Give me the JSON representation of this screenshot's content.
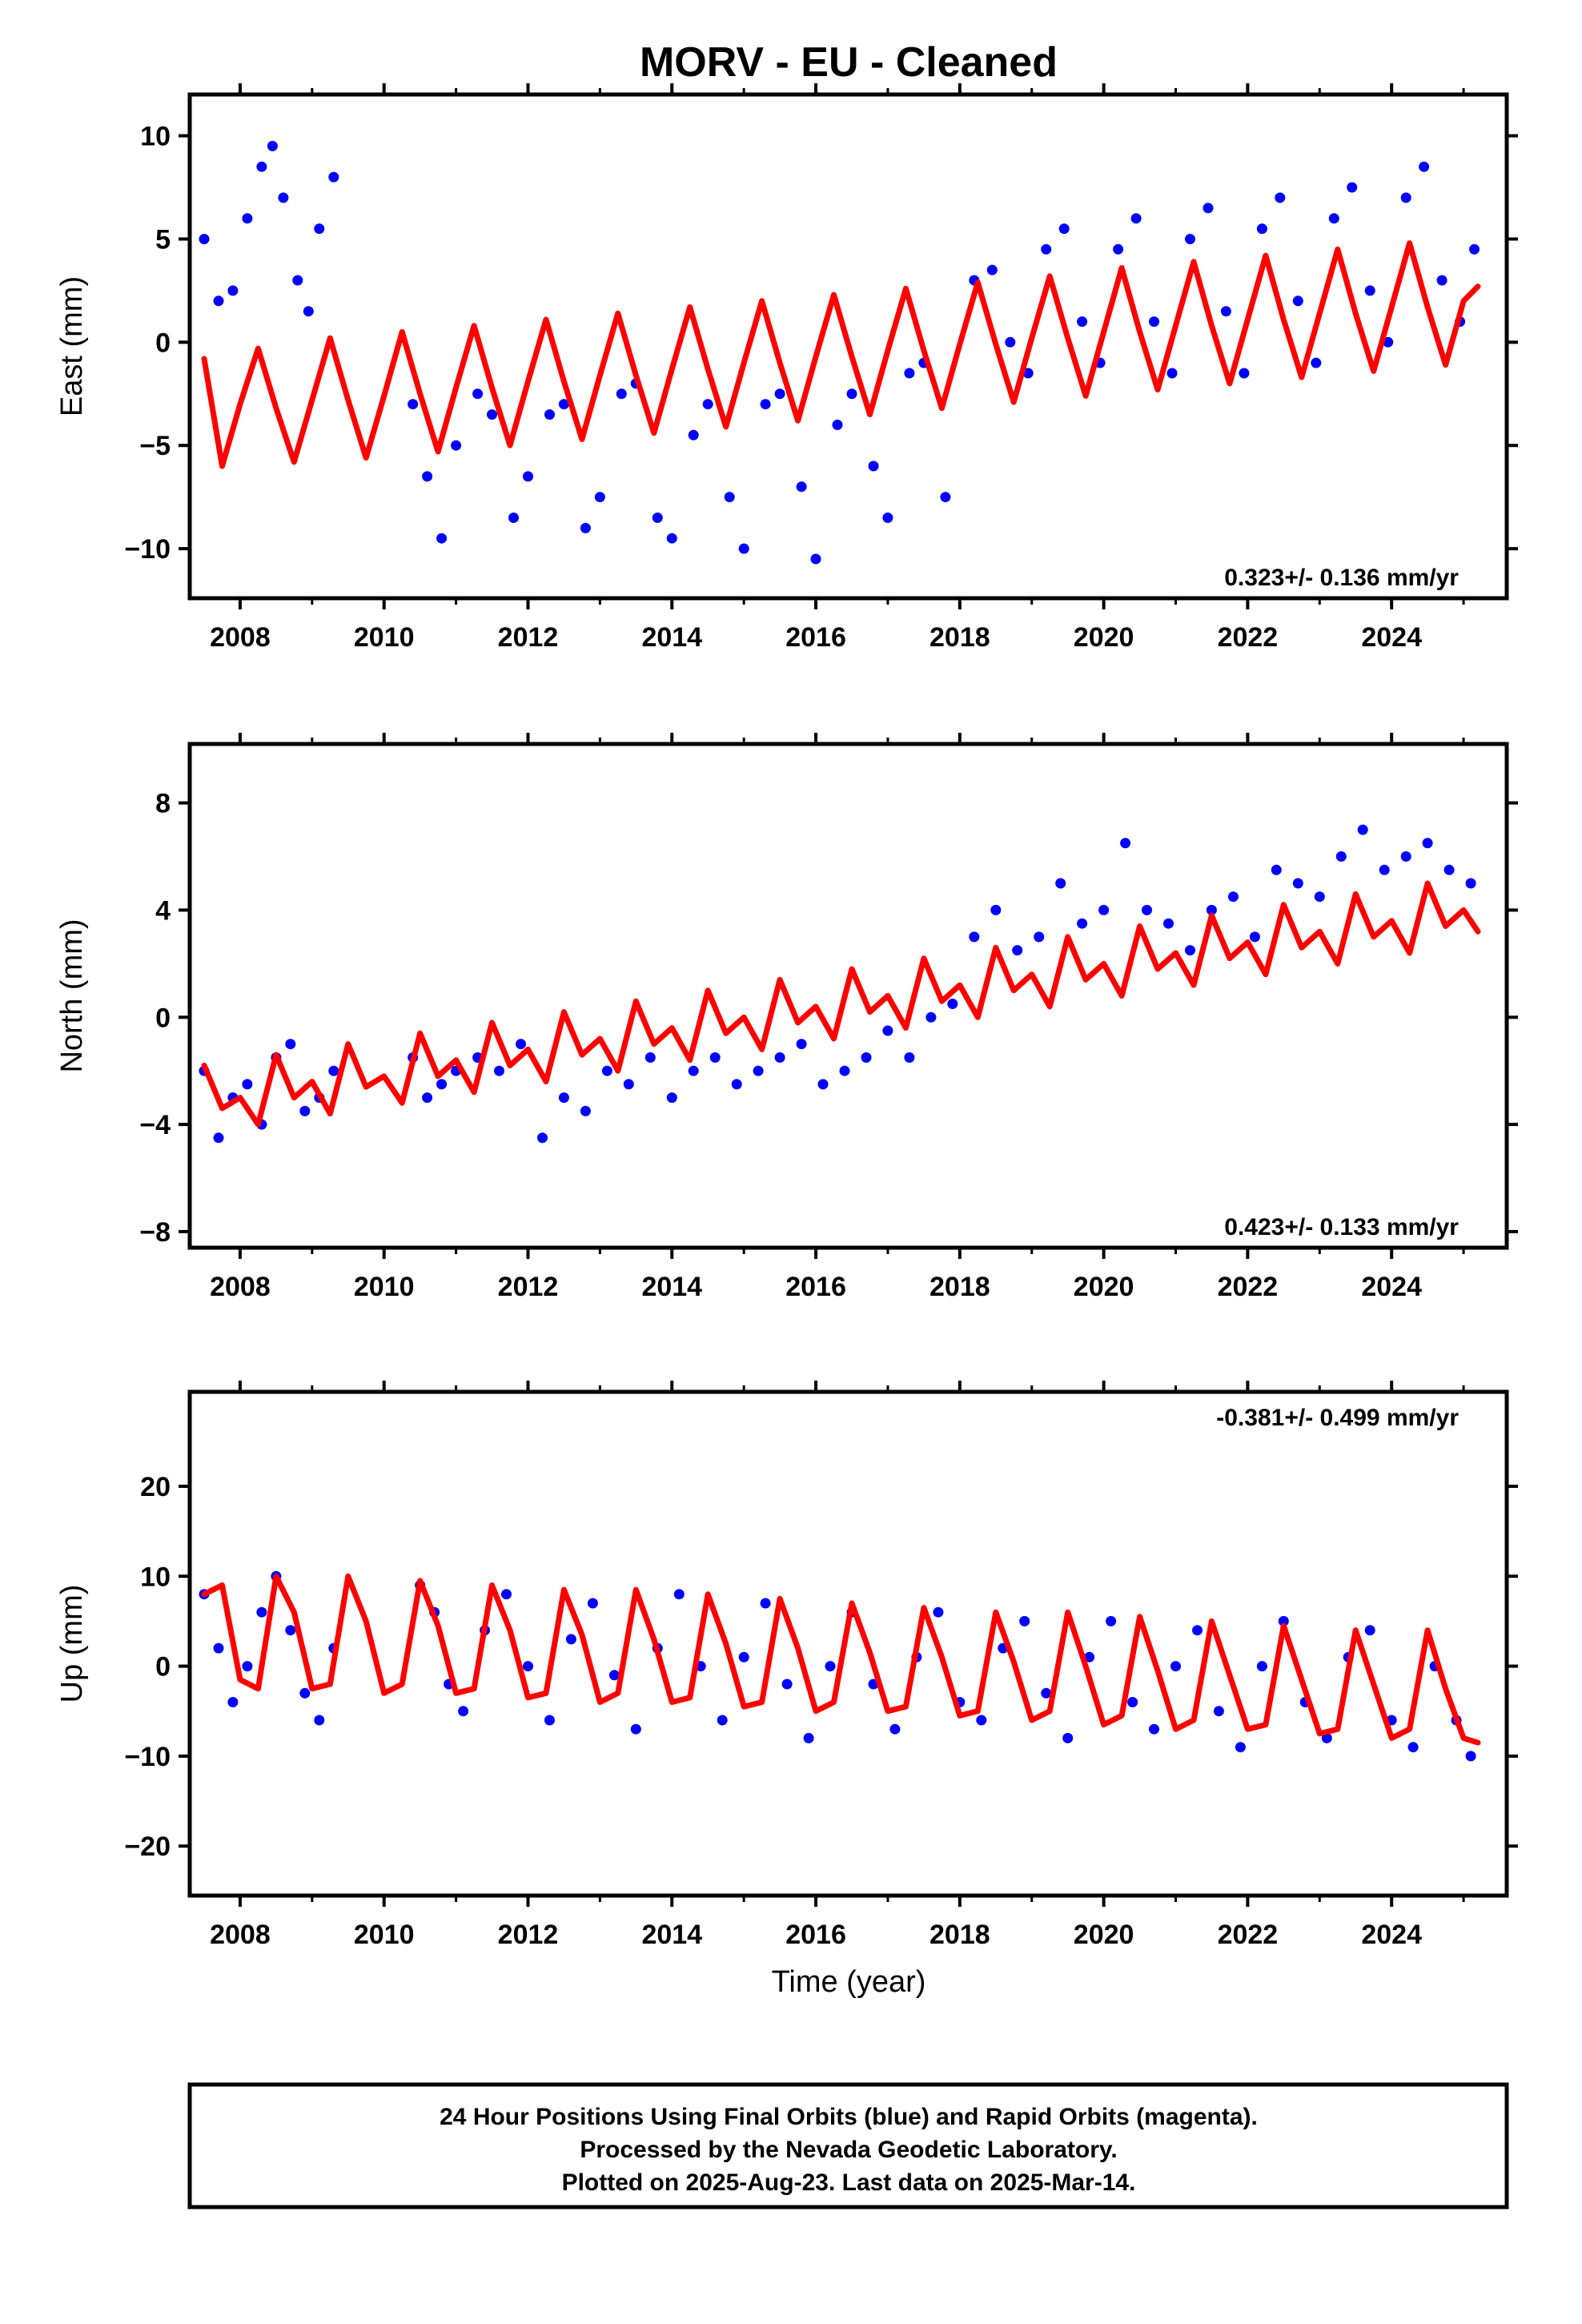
{
  "figure": {
    "title": "MORV  - EU - Cleaned",
    "xlabel": "Time (year)",
    "caption": [
      "24 Hour Positions Using Final Orbits (blue) and Rapid Orbits (magenta).",
      "Processed by the Nevada Geodetic Laboratory.",
      "Plotted on 2025-Aug-23. Last data on 2025-Mar-14."
    ]
  },
  "colors": {
    "data": "#0000ff",
    "model": "#ff0000",
    "frame": "#000000"
  },
  "chart_data": [
    {
      "type": "scatter",
      "component": "east",
      "ylabel": "East (mm)",
      "rate_label": "0.323+/- 0.136 mm/yr",
      "xlim": [
        2007.3,
        2025.6
      ],
      "ylim": [
        -12.4,
        12.0
      ],
      "xticks": [
        2008,
        2010,
        2012,
        2014,
        2016,
        2018,
        2020,
        2022,
        2024
      ],
      "xtick_labels": [
        "2008",
        "2010",
        "2012",
        "2014",
        "2016",
        "2018",
        "2020",
        "2022",
        "2024"
      ],
      "yticks": [
        -10,
        -5,
        0,
        5,
        10
      ],
      "ytick_labels": [
        "−10",
        "−5",
        "0",
        "5",
        "10"
      ],
      "series": [
        {
          "kind": "points",
          "color": "#0000ff",
          "x": [
            2007.5,
            2007.7,
            2007.9,
            2008.1,
            2008.3,
            2008.45,
            2008.6,
            2008.8,
            2008.95,
            2009.1,
            2009.3,
            2010.4,
            2010.6,
            2010.8,
            2011.0,
            2011.3,
            2011.5,
            2011.8,
            2012.0,
            2012.3,
            2012.5,
            2012.8,
            2013.0,
            2013.3,
            2013.5,
            2013.8,
            2014.0,
            2014.3,
            2014.5,
            2014.8,
            2015.0,
            2015.3,
            2015.5,
            2015.8,
            2016.0,
            2016.3,
            2016.5,
            2016.8,
            2017.0,
            2017.3,
            2017.5,
            2017.8,
            2018.2,
            2018.45,
            2018.7,
            2018.95,
            2019.2,
            2019.45,
            2019.7,
            2019.95,
            2020.2,
            2020.45,
            2020.7,
            2020.95,
            2021.2,
            2021.45,
            2021.7,
            2021.95,
            2022.2,
            2022.45,
            2022.7,
            2022.95,
            2023.2,
            2023.45,
            2023.7,
            2023.95,
            2024.2,
            2024.45,
            2024.7,
            2024.95,
            2025.15
          ],
          "y": [
            5.0,
            2.0,
            2.5,
            6.0,
            8.5,
            9.5,
            7.0,
            3.0,
            1.5,
            5.5,
            8.0,
            -3.0,
            -6.5,
            -9.5,
            -5.0,
            -2.5,
            -3.5,
            -8.5,
            -6.5,
            -3.5,
            -3.0,
            -9.0,
            -7.5,
            -2.5,
            -2.0,
            -8.5,
            -9.5,
            -4.5,
            -3.0,
            -7.5,
            -10.0,
            -3.0,
            -2.5,
            -7.0,
            -10.5,
            -4.0,
            -2.5,
            -6.0,
            -8.5,
            -1.5,
            -1.0,
            -7.5,
            3.0,
            3.5,
            0.0,
            -1.5,
            4.5,
            5.5,
            1.0,
            -1.0,
            4.5,
            6.0,
            1.0,
            -1.5,
            5.0,
            6.5,
            1.5,
            -1.5,
            5.5,
            7.0,
            2.0,
            -1.0,
            6.0,
            7.5,
            2.5,
            0.0,
            7.0,
            8.5,
            3.0,
            1.0,
            4.5
          ]
        },
        {
          "kind": "model",
          "color": "#ff0000",
          "x": [
            2007.5,
            2007.75,
            2008.0,
            2008.25,
            2008.5,
            2008.75,
            2009.0,
            2009.25,
            2009.5,
            2009.75,
            2010.0,
            2010.25,
            2010.5,
            2010.75,
            2011.0,
            2011.25,
            2011.5,
            2011.75,
            2012.0,
            2012.25,
            2012.5,
            2012.75,
            2013.0,
            2013.25,
            2013.5,
            2013.75,
            2014.0,
            2014.25,
            2014.5,
            2014.75,
            2015.0,
            2015.25,
            2015.5,
            2015.75,
            2016.0,
            2016.25,
            2016.5,
            2016.75,
            2017.0,
            2017.25,
            2017.5,
            2017.75,
            2018.0,
            2018.25,
            2018.5,
            2018.75,
            2019.0,
            2019.25,
            2019.5,
            2019.75,
            2020.0,
            2020.25,
            2020.5,
            2020.75,
            2021.0,
            2021.25,
            2021.5,
            2021.75,
            2022.0,
            2022.25,
            2022.5,
            2022.75,
            2023.0,
            2023.25,
            2023.5,
            2023.75,
            2024.0,
            2024.25,
            2024.5,
            2024.75,
            2025.0,
            2025.2
          ],
          "y": [
            -0.8,
            -6.0,
            -3.0,
            -0.3,
            -3.2,
            -5.8,
            -2.8,
            0.2,
            -2.8,
            -5.6,
            -2.6,
            0.5,
            -2.5,
            -5.3,
            -2.2,
            0.8,
            -2.2,
            -5.0,
            -1.9,
            1.1,
            -1.9,
            -4.7,
            -1.6,
            1.4,
            -1.6,
            -4.4,
            -1.3,
            1.7,
            -1.3,
            -4.1,
            -1.0,
            2.0,
            -1.0,
            -3.8,
            -0.7,
            2.3,
            -0.7,
            -3.5,
            -0.4,
            2.6,
            -0.4,
            -3.2,
            -0.1,
            2.9,
            -0.1,
            -2.9,
            0.2,
            3.2,
            0.2,
            -2.6,
            0.5,
            3.6,
            0.5,
            -2.3,
            0.8,
            3.9,
            0.8,
            -2.0,
            1.1,
            4.2,
            1.1,
            -1.7,
            1.4,
            4.5,
            1.4,
            -1.4,
            1.7,
            4.8,
            1.7,
            -1.1,
            2.0,
            2.7
          ]
        }
      ]
    },
    {
      "type": "scatter",
      "component": "north",
      "ylabel": "North (mm)",
      "rate_label": "0.423+/- 0.133 mm/yr",
      "xlim": [
        2007.3,
        2025.6
      ],
      "ylim": [
        -8.6,
        10.2
      ],
      "xticks": [
        2008,
        2010,
        2012,
        2014,
        2016,
        2018,
        2020,
        2022,
        2024
      ],
      "xtick_labels": [
        "2008",
        "2010",
        "2012",
        "2014",
        "2016",
        "2018",
        "2020",
        "2022",
        "2024"
      ],
      "yticks": [
        -8,
        -4,
        0,
        4,
        8
      ],
      "ytick_labels": [
        "−8",
        "−4",
        "0",
        "4",
        "8"
      ],
      "series": [
        {
          "kind": "points",
          "color": "#0000ff",
          "x": [
            2007.5,
            2007.7,
            2007.9,
            2008.1,
            2008.3,
            2008.5,
            2008.7,
            2008.9,
            2009.1,
            2009.3,
            2010.4,
            2010.6,
            2010.8,
            2011.0,
            2011.3,
            2011.6,
            2011.9,
            2012.2,
            2012.5,
            2012.8,
            2013.1,
            2013.4,
            2013.7,
            2014.0,
            2014.3,
            2014.6,
            2014.9,
            2015.2,
            2015.5,
            2015.8,
            2016.1,
            2016.4,
            2016.7,
            2017.0,
            2017.3,
            2017.6,
            2017.9,
            2018.2,
            2018.5,
            2018.8,
            2019.1,
            2019.4,
            2019.7,
            2020.0,
            2020.3,
            2020.6,
            2020.9,
            2021.2,
            2021.5,
            2021.8,
            2022.1,
            2022.4,
            2022.7,
            2023.0,
            2023.3,
            2023.6,
            2023.9,
            2024.2,
            2024.5,
            2024.8,
            2025.1
          ],
          "y": [
            -2.0,
            -4.5,
            -3.0,
            -2.5,
            -4.0,
            -1.5,
            -1.0,
            -3.5,
            -3.0,
            -2.0,
            -1.5,
            -3.0,
            -2.5,
            -2.0,
            -1.5,
            -2.0,
            -1.0,
            -4.5,
            -3.0,
            -3.5,
            -2.0,
            -2.5,
            -1.5,
            -3.0,
            -2.0,
            -1.5,
            -2.5,
            -2.0,
            -1.5,
            -1.0,
            -2.5,
            -2.0,
            -1.5,
            -0.5,
            -1.5,
            0.0,
            0.5,
            3.0,
            4.0,
            2.5,
            3.0,
            5.0,
            3.5,
            4.0,
            6.5,
            4.0,
            3.5,
            2.5,
            4.0,
            4.5,
            3.0,
            5.5,
            5.0,
            4.5,
            6.0,
            7.0,
            5.5,
            6.0,
            6.5,
            5.5,
            5.0
          ]
        },
        {
          "kind": "model",
          "color": "#ff0000",
          "x": [
            2007.5,
            2007.75,
            2008.0,
            2008.25,
            2008.5,
            2008.75,
            2009.0,
            2009.25,
            2009.5,
            2009.75,
            2010.0,
            2010.25,
            2010.5,
            2010.75,
            2011.0,
            2011.25,
            2011.5,
            2011.75,
            2012.0,
            2012.25,
            2012.5,
            2012.75,
            2013.0,
            2013.25,
            2013.5,
            2013.75,
            2014.0,
            2014.25,
            2014.5,
            2014.75,
            2015.0,
            2015.25,
            2015.5,
            2015.75,
            2016.0,
            2016.25,
            2016.5,
            2016.75,
            2017.0,
            2017.25,
            2017.5,
            2017.75,
            2018.0,
            2018.25,
            2018.5,
            2018.75,
            2019.0,
            2019.25,
            2019.5,
            2019.75,
            2020.0,
            2020.25,
            2020.5,
            2020.75,
            2021.0,
            2021.25,
            2021.5,
            2021.75,
            2022.0,
            2022.25,
            2022.5,
            2022.75,
            2023.0,
            2023.25,
            2023.5,
            2023.75,
            2024.0,
            2024.25,
            2024.5,
            2024.75,
            2025.0,
            2025.2
          ],
          "y": [
            -1.8,
            -3.4,
            -3.0,
            -4.0,
            -1.4,
            -3.0,
            -2.4,
            -3.6,
            -1.0,
            -2.6,
            -2.2,
            -3.2,
            -0.6,
            -2.2,
            -1.6,
            -2.8,
            -0.2,
            -1.8,
            -1.2,
            -2.4,
            0.2,
            -1.4,
            -0.8,
            -2.0,
            0.6,
            -1.0,
            -0.4,
            -1.6,
            1.0,
            -0.6,
            0.0,
            -1.2,
            1.4,
            -0.2,
            0.4,
            -0.8,
            1.8,
            0.2,
            0.8,
            -0.4,
            2.2,
            0.6,
            1.2,
            0.0,
            2.6,
            1.0,
            1.6,
            0.4,
            3.0,
            1.4,
            2.0,
            0.8,
            3.4,
            1.8,
            2.4,
            1.2,
            3.8,
            2.2,
            2.8,
            1.6,
            4.2,
            2.6,
            3.2,
            2.0,
            4.6,
            3.0,
            3.6,
            2.4,
            5.0,
            3.4,
            4.0,
            3.2
          ]
        }
      ]
    },
    {
      "type": "scatter",
      "component": "up",
      "ylabel": "Up (mm)",
      "rate_label": "-0.381+/- 0.499 mm/yr",
      "xlim": [
        2007.3,
        2025.6
      ],
      "ylim": [
        -25.5,
        30.5
      ],
      "xticks": [
        2008,
        2010,
        2012,
        2014,
        2016,
        2018,
        2020,
        2022,
        2024
      ],
      "xtick_labels": [
        "2008",
        "2010",
        "2012",
        "2014",
        "2016",
        "2018",
        "2020",
        "2022",
        "2024"
      ],
      "yticks": [
        -20,
        -10,
        0,
        10,
        20
      ],
      "ytick_labels": [
        "−20",
        "−10",
        "0",
        "10",
        "20"
      ],
      "series": [
        {
          "kind": "points",
          "color": "#0000ff",
          "x": [
            2007.5,
            2007.7,
            2007.9,
            2008.1,
            2008.3,
            2008.5,
            2008.7,
            2008.9,
            2009.1,
            2009.3,
            2010.5,
            2010.7,
            2010.9,
            2011.1,
            2011.4,
            2011.7,
            2012.0,
            2012.3,
            2012.6,
            2012.9,
            2013.2,
            2013.5,
            2013.8,
            2014.1,
            2014.4,
            2014.7,
            2015.0,
            2015.3,
            2015.6,
            2015.9,
            2016.2,
            2016.5,
            2016.8,
            2017.1,
            2017.4,
            2017.7,
            2018.0,
            2018.3,
            2018.6,
            2018.9,
            2019.2,
            2019.5,
            2019.8,
            2020.1,
            2020.4,
            2020.7,
            2021.0,
            2021.3,
            2021.6,
            2021.9,
            2022.2,
            2022.5,
            2022.8,
            2023.1,
            2023.4,
            2023.7,
            2024.0,
            2024.3,
            2024.6,
            2024.9,
            2025.1
          ],
          "y": [
            8.0,
            2.0,
            -4.0,
            0.0,
            6.0,
            10.0,
            4.0,
            -3.0,
            -6.0,
            2.0,
            9.0,
            6.0,
            -2.0,
            -5.0,
            4.0,
            8.0,
            0.0,
            -6.0,
            3.0,
            7.0,
            -1.0,
            -7.0,
            2.0,
            8.0,
            0.0,
            -6.0,
            1.0,
            7.0,
            -2.0,
            -8.0,
            0.0,
            6.0,
            -2.0,
            -7.0,
            1.0,
            6.0,
            -4.0,
            -6.0,
            2.0,
            5.0,
            -3.0,
            -8.0,
            1.0,
            5.0,
            -4.0,
            -7.0,
            0.0,
            4.0,
            -5.0,
            -9.0,
            0.0,
            5.0,
            -4.0,
            -8.0,
            1.0,
            4.0,
            -6.0,
            -9.0,
            0.0,
            -6.0,
            -10.0
          ]
        },
        {
          "kind": "model",
          "color": "#ff0000",
          "x": [
            2007.5,
            2007.75,
            2008.0,
            2008.25,
            2008.5,
            2008.75,
            2009.0,
            2009.25,
            2009.5,
            2009.75,
            2010.0,
            2010.25,
            2010.5,
            2010.75,
            2011.0,
            2011.25,
            2011.5,
            2011.75,
            2012.0,
            2012.25,
            2012.5,
            2012.75,
            2013.0,
            2013.25,
            2013.5,
            2013.75,
            2014.0,
            2014.25,
            2014.5,
            2014.75,
            2015.0,
            2015.25,
            2015.5,
            2015.75,
            2016.0,
            2016.25,
            2016.5,
            2016.75,
            2017.0,
            2017.25,
            2017.5,
            2017.75,
            2018.0,
            2018.25,
            2018.5,
            2018.75,
            2019.0,
            2019.25,
            2019.5,
            2019.75,
            2020.0,
            2020.25,
            2020.5,
            2020.75,
            2021.0,
            2021.25,
            2021.5,
            2021.75,
            2022.0,
            2022.25,
            2022.5,
            2022.75,
            2023.0,
            2023.25,
            2023.5,
            2023.75,
            2024.0,
            2024.25,
            2024.5,
            2024.75,
            2025.0,
            2025.2
          ],
          "y": [
            8.0,
            9.0,
            -1.5,
            -2.5,
            10.0,
            6.0,
            -2.5,
            -2.0,
            10.0,
            5.0,
            -3.0,
            -2.0,
            9.5,
            4.5,
            -3.0,
            -2.5,
            9.0,
            4.0,
            -3.5,
            -3.0,
            8.5,
            3.5,
            -4.0,
            -3.0,
            8.5,
            3.0,
            -4.0,
            -3.5,
            8.0,
            2.5,
            -4.5,
            -4.0,
            7.5,
            2.0,
            -5.0,
            -4.0,
            7.0,
            1.5,
            -5.0,
            -4.5,
            6.5,
            1.0,
            -5.5,
            -5.0,
            6.0,
            0.5,
            -6.0,
            -5.0,
            6.0,
            0.0,
            -6.5,
            -5.5,
            5.5,
            -0.5,
            -7.0,
            -6.0,
            5.0,
            -1.0,
            -7.0,
            -6.5,
            4.5,
            -1.5,
            -7.5,
            -7.0,
            4.0,
            -2.0,
            -8.0,
            -7.0,
            4.0,
            -2.5,
            -8.0,
            -8.5
          ]
        }
      ]
    }
  ]
}
